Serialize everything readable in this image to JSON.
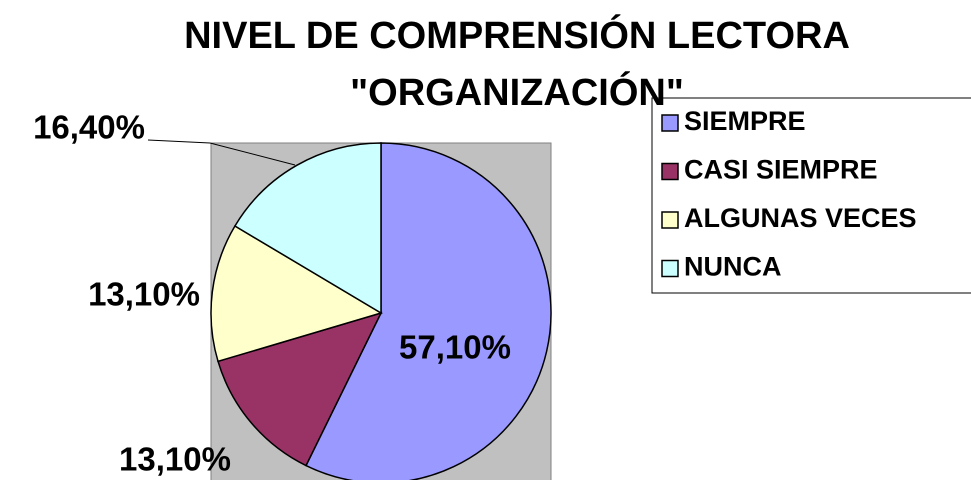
{
  "chart_data": {
    "type": "pie",
    "title": [
      "NIVEL DE COMPRENSIÓN LECTORA",
      "\"ORGANIZACIÓN\""
    ],
    "categories": [
      "SIEMPRE",
      "CASI SIEMPRE",
      "ALGUNAS VECES",
      "NUNCA"
    ],
    "values": [
      57.1,
      13.1,
      13.1,
      16.4
    ],
    "value_labels": [
      "57,10%",
      "13,10%",
      "13,10%",
      "16,40%"
    ],
    "colors": [
      "#9999ff",
      "#993366",
      "#ffffcc",
      "#ccffff"
    ],
    "legend": "right"
  }
}
